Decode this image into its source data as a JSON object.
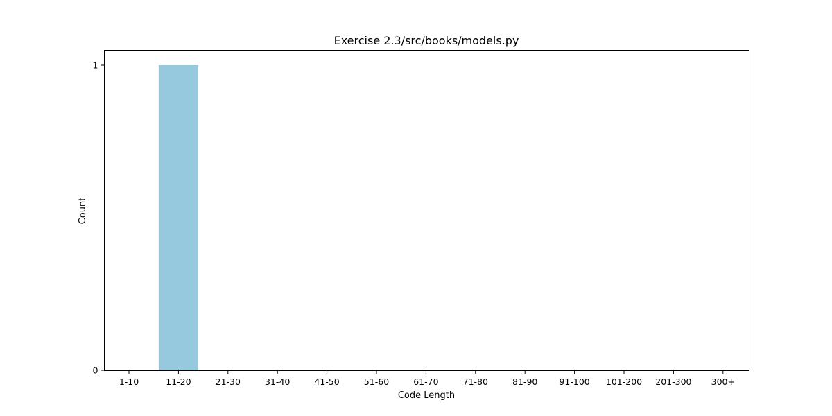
{
  "chart_data": {
    "type": "bar",
    "title": "Exercise 2.3/src/books/models.py",
    "xlabel": "Code Length",
    "ylabel": "Count",
    "categories": [
      "1-10",
      "11-20",
      "21-30",
      "31-40",
      "41-50",
      "51-60",
      "61-70",
      "71-80",
      "81-90",
      "91-100",
      "101-200",
      "201-300",
      "300+"
    ],
    "values": [
      0,
      1,
      0,
      0,
      0,
      0,
      0,
      0,
      0,
      0,
      0,
      0,
      0
    ],
    "y_ticks": [
      "0",
      "1"
    ],
    "ylim": [
      0,
      1
    ],
    "grid": false,
    "bar_color": "#96c9dd"
  }
}
